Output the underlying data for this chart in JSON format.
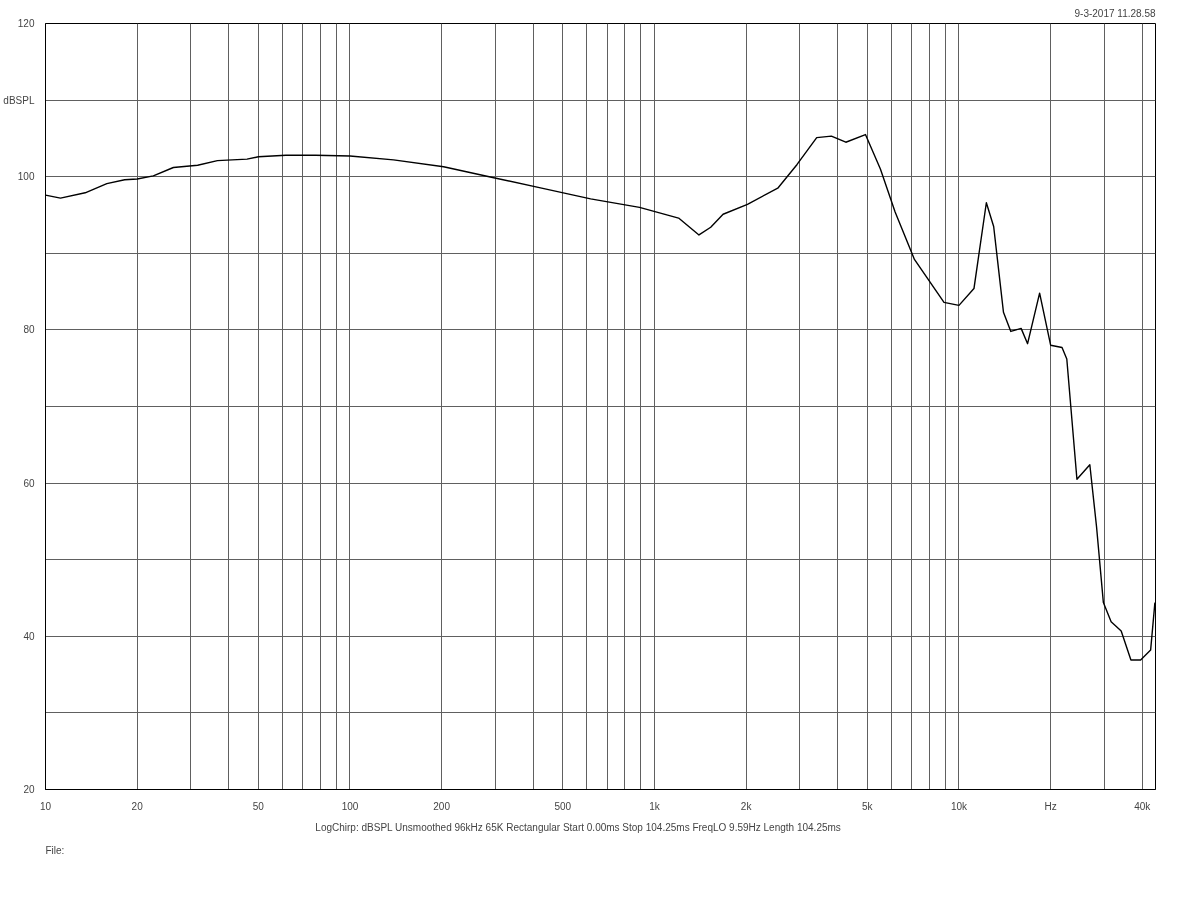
{
  "chart_data": {
    "type": "line",
    "log": "x",
    "grid": true,
    "annotations": [
      "9-3-2017 11.28.58",
      "LogChirp: dBSPL   Unsmoothed   96kHz   65K   Rectangular   Start 0.00ms   Stop 104.25ms   FreqLO 9.59Hz   Length 104.25ms",
      "File:"
    ],
    "xlim": [
      10,
      44200
    ],
    "ylim": [
      20,
      120
    ],
    "xticks": [
      10,
      20,
      {
        "value": 30,
        "label": null
      },
      {
        "value": 40,
        "label": null
      },
      50,
      {
        "value": 60,
        "label": null
      },
      {
        "value": 70,
        "label": null
      },
      {
        "value": 80,
        "label": null
      },
      {
        "value": 90,
        "label": null
      },
      100,
      200,
      {
        "value": 300,
        "label": null
      },
      {
        "value": 400,
        "label": null
      },
      500,
      {
        "value": 600,
        "label": null
      },
      {
        "value": 700,
        "label": null
      },
      {
        "value": 800,
        "label": null
      },
      {
        "value": 900,
        "label": null
      },
      {
        "value": 1000,
        "label": "1k"
      },
      {
        "value": 2000,
        "label": "2k"
      },
      {
        "value": 3000,
        "label": null
      },
      {
        "value": 4000,
        "label": null
      },
      {
        "value": 5000,
        "label": "5k"
      },
      {
        "value": 6000,
        "label": null
      },
      {
        "value": 7000,
        "label": null
      },
      {
        "value": 8000,
        "label": null
      },
      {
        "value": 9000,
        "label": null
      },
      {
        "value": 10000,
        "label": "10k"
      },
      {
        "value": 20000,
        "label": "Hz"
      },
      {
        "value": 30000,
        "label": null
      },
      {
        "value": 40000,
        "label": "40k"
      }
    ],
    "yticks": [
      20,
      {
        "value": 30,
        "label": null
      },
      40,
      {
        "value": 50,
        "label": null
      },
      60,
      {
        "value": 70,
        "label": null
      },
      80,
      {
        "value": 90,
        "label": null
      },
      100,
      {
        "value": 110,
        "label": "dBSPL"
      },
      120
    ],
    "x": [
      10,
      11.2,
      13.5,
      15.9,
      18.2,
      20,
      22.6,
      26.3,
      31.6,
      36.7,
      45.9,
      50,
      61.6,
      77,
      100,
      139,
      203,
      294,
      426,
      617,
      893,
      1200,
      1400,
      1530,
      1680,
      2020,
      2540,
      2940,
      3410,
      3810,
      4250,
      4930,
      5520,
      6170,
      7140,
      8930,
      10000,
      11200,
      12300,
      13000,
      14000,
      14800,
      16000,
      16800,
      18400,
      20000,
      21800,
      22600,
      24400,
      26900,
      28300,
      29800,
      31600,
      34100,
      36700,
      39500,
      42600,
      44000
    ],
    "series": [
      {
        "color": "#000000",
        "values": [
          97.6,
          97.2,
          97.9,
          99.1,
          99.6,
          99.7,
          100.1,
          101.2,
          101.5,
          102.1,
          102.3,
          102.6,
          102.8,
          102.8,
          102.7,
          102.2,
          101.3,
          99.9,
          98.5,
          97.1,
          96.0,
          94.6,
          92.4,
          93.4,
          95.1,
          96.4,
          98.5,
          101.6,
          105.1,
          105.3,
          104.5,
          105.5,
          101.0,
          95.4,
          89.2,
          83.6,
          83.2,
          85.4,
          96.6,
          93.5,
          82.3,
          79.8,
          80.2,
          78.2,
          84.8,
          78.0,
          77.7,
          76.2,
          60.5,
          62.4,
          54.3,
          44.4,
          41.9,
          40.7,
          36.9,
          36.9,
          38.2,
          44.4
        ]
      }
    ]
  }
}
